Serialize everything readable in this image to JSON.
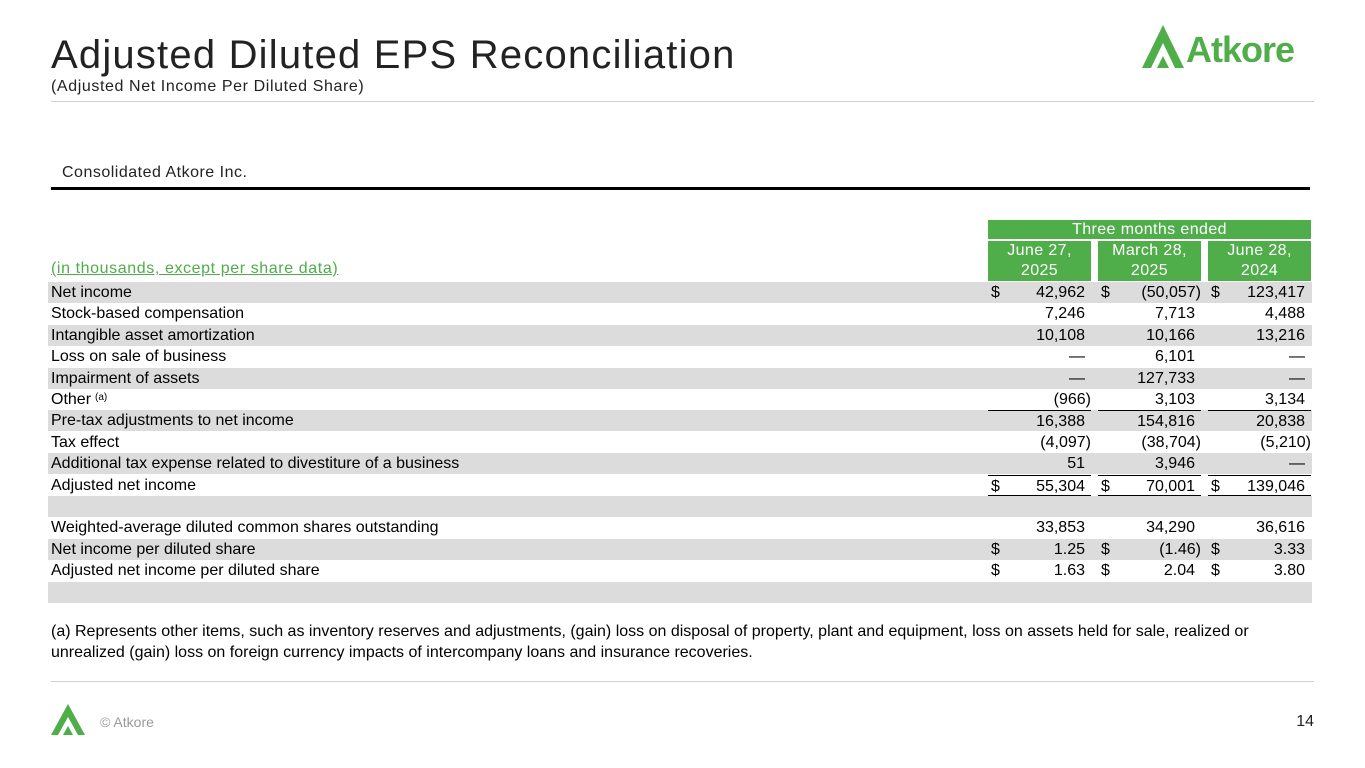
{
  "header": {
    "title": "Adjusted Diluted EPS Reconciliation",
    "subtitle": "(Adjusted Net Income Per Diluted Share)",
    "logo_text": "Atkore",
    "brand_color": "#4fad4a"
  },
  "section_title": "Consolidated Atkore Inc.",
  "table": {
    "group_header": "Three months ended",
    "units_label": "(in thousands, except per share data)",
    "columns": [
      {
        "line1": "June 27,",
        "line2": "2025"
      },
      {
        "line1": "March 28,",
        "line2": "2025"
      },
      {
        "line1": "June 28,",
        "line2": "2024"
      }
    ],
    "currency_symbol": "$",
    "rows": [
      {
        "label": "Net income",
        "values": [
          "42,962",
          "(50,057)",
          "123,417"
        ]
      },
      {
        "label": "Stock-based compensation",
        "values": [
          "7,246",
          "7,713",
          "4,488"
        ]
      },
      {
        "label": "Intangible asset amortization",
        "values": [
          "10,108",
          "10,166",
          "13,216"
        ]
      },
      {
        "label": "Loss on sale of business",
        "values": [
          "—",
          "6,101",
          "—"
        ]
      },
      {
        "label": "Impairment of assets",
        "values": [
          "—",
          "127,733",
          "—"
        ]
      },
      {
        "label": "Other",
        "footnote_mark": "(a)",
        "values": [
          "(966)",
          "3,103",
          "3,134"
        ]
      },
      {
        "label": "Pre-tax adjustments to net income",
        "values": [
          "16,388",
          "154,816",
          "20,838"
        ]
      },
      {
        "label": "Tax effect",
        "values": [
          "(4,097)",
          "(38,704)",
          "(5,210)"
        ]
      },
      {
        "label": "Additional tax expense related to divestiture of a business",
        "values": [
          "51",
          "3,946",
          "—"
        ]
      },
      {
        "label": "Adjusted net income",
        "values": [
          "55,304",
          "70,001",
          "139,046"
        ]
      },
      {
        "label": "",
        "values": [
          "",
          "",
          ""
        ]
      },
      {
        "label": "Weighted-average diluted common shares outstanding",
        "values": [
          "33,853",
          "34,290",
          "36,616"
        ]
      },
      {
        "label": "Net income per diluted share",
        "values": [
          "1.25",
          "(1.46)",
          "3.33"
        ]
      },
      {
        "label": "Adjusted net income per diluted share",
        "values": [
          "1.63",
          "2.04",
          "3.80"
        ]
      },
      {
        "label": "",
        "values": [
          "",
          "",
          ""
        ]
      }
    ]
  },
  "footnote": "(a) Represents other items, such as inventory reserves and adjustments, (gain) loss on disposal of property, plant and equipment, loss on assets held for sale, realized or unrealized (gain) loss on foreign currency impacts of intercompany loans and insurance recoveries.",
  "footer": {
    "copyright": "© Atkore",
    "page_number": "14"
  }
}
